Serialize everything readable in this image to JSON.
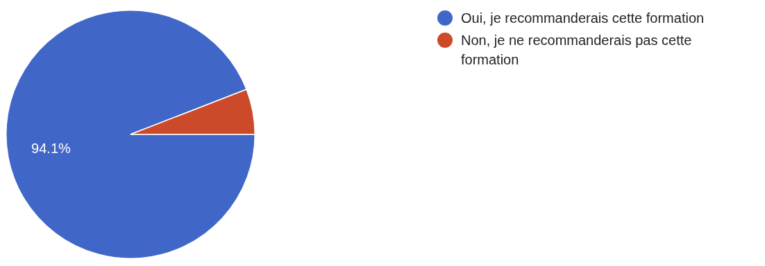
{
  "chart_data": {
    "type": "pie",
    "categories": [
      "Oui, je recommanderais cette formation",
      "Non, je ne recommanderais pas cette formation"
    ],
    "values": [
      94.1,
      5.9
    ],
    "colors": [
      "#4066c7",
      "#cc4a2a"
    ],
    "value_labels": [
      "94.1%",
      null
    ],
    "legend": "right"
  }
}
